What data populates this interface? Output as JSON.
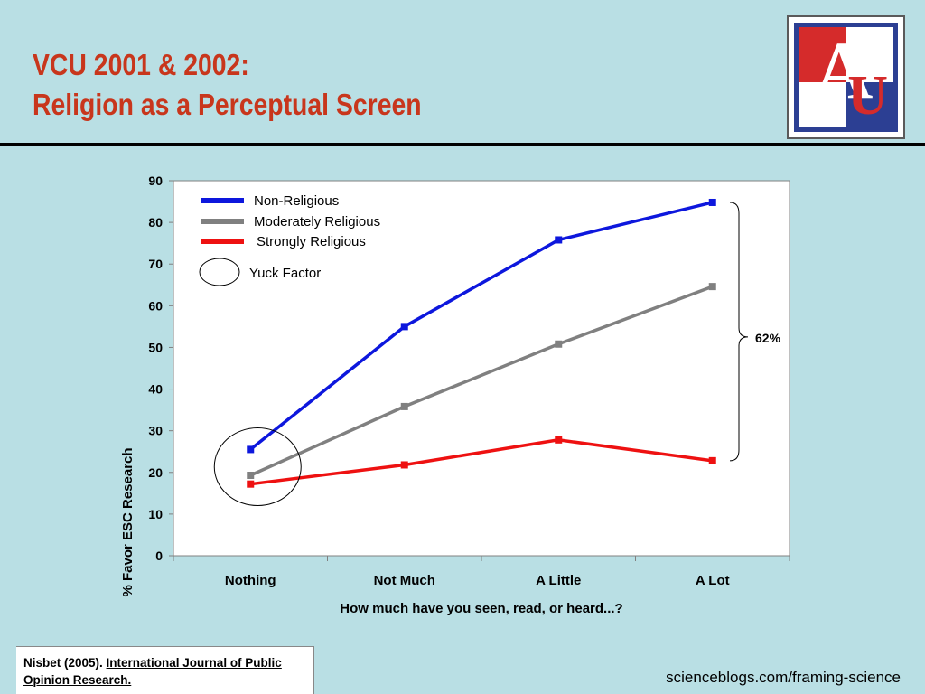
{
  "slide": {
    "title_line1": "VCU 2001 & 2002:",
    "title_line2": "Religion as a Perceptual Screen",
    "logo_letter_1": "A",
    "logo_letter_2": "U",
    "citation_prefix": "Nisbet (2005). ",
    "citation_journal": "International Journal of Public Opinion Research.",
    "source": "scienceblogs.com/framing-science"
  },
  "colors": {
    "title": "#c8361c",
    "background": "#b9dfe4",
    "non_religious": "#0d17dd",
    "moderately_religious": "#808080",
    "strongly_religious": "#ee1111"
  },
  "chart_data": {
    "type": "line",
    "categories": [
      "Nothing",
      "Not Much",
      "A Little",
      "A Lot"
    ],
    "xlabel": "How much have you seen, read, or heard...?",
    "ylabel": "% Favor ESC Research",
    "ylim": [
      0,
      90
    ],
    "yticks": [
      "0",
      "10",
      "20",
      "30",
      "40",
      "50",
      "60",
      "70",
      "80",
      "90"
    ],
    "grid": false,
    "legend_position": "top-left",
    "series": [
      {
        "name": "Non-Religious",
        "color": "#0d17dd",
        "values": [
          25.5,
          55,
          75.8,
          84.8
        ]
      },
      {
        "name": "Moderately Religious",
        "color": "#808080",
        "values": [
          19.3,
          35.8,
          50.8,
          64.6
        ]
      },
      {
        "name": "Strongly Religious",
        "color": "#ee1111",
        "values": [
          17.2,
          21.8,
          27.8,
          22.8
        ]
      }
    ],
    "annotations": {
      "circle_legend": "Yuck Factor",
      "bracket_label": "62%"
    }
  }
}
